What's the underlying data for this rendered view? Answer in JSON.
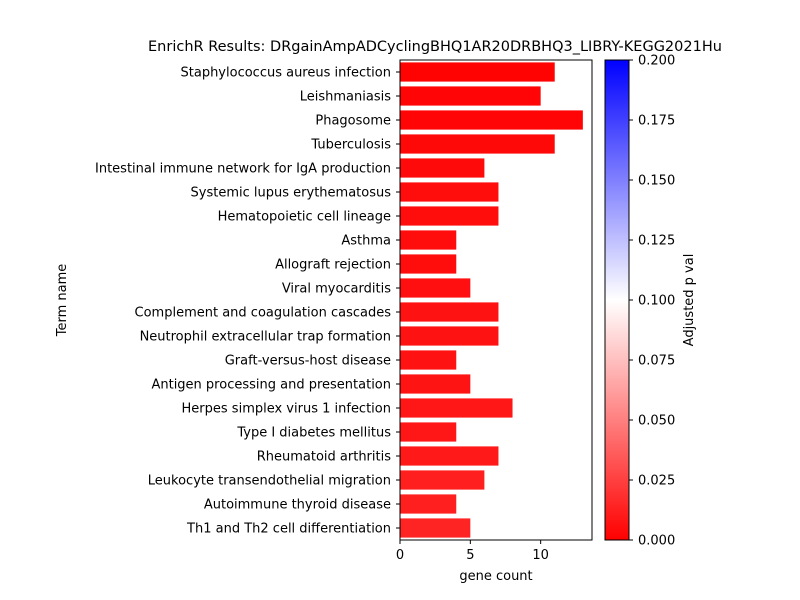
{
  "chart_data": {
    "type": "bar",
    "orientation": "horizontal",
    "title": "EnrichR Results: DRgainAmpADCyclingBHQ1AR20DRBHQ3_LIBRY-KEGG2021Hu",
    "xlabel": "gene count",
    "ylabel": "Term name",
    "xlim": [
      0,
      13.65
    ],
    "x_ticks": [
      "0",
      "5",
      "10"
    ],
    "x_tick_values": [
      0,
      5,
      10
    ],
    "categories": [
      "Staphylococcus aureus infection",
      "Leishmaniasis",
      "Phagosome",
      "Tuberculosis",
      "Intestinal immune network for IgA production",
      "Systemic lupus erythematosus",
      "Hematopoietic cell lineage",
      "Asthma",
      "Allograft rejection",
      "Viral myocarditis",
      "Complement and coagulation cascades",
      "Neutrophil extracellular trap formation",
      "Graft-versus-host disease",
      "Antigen processing and presentation",
      "Herpes simplex virus 1 infection",
      "Type I diabetes mellitus",
      "Rheumatoid arthritis",
      "Leukocyte transendothelial migration",
      "Autoimmune thyroid disease",
      "Th1 and Th2 cell differentiation"
    ],
    "values": [
      11,
      10,
      13,
      11,
      6,
      7,
      7,
      4,
      4,
      5,
      7,
      7,
      4,
      5,
      8,
      4,
      7,
      6,
      4,
      5
    ],
    "adjusted_p": [
      0.001,
      0.002,
      0.002,
      0.003,
      0.004,
      0.005,
      0.005,
      0.005,
      0.005,
      0.006,
      0.007,
      0.007,
      0.007,
      0.008,
      0.009,
      0.009,
      0.01,
      0.012,
      0.012,
      0.014
    ],
    "colorbar": {
      "label": "Adjusted p val",
      "range": [
        0,
        0.2
      ],
      "ticks": [
        "0.000",
        "0.025",
        "0.050",
        "0.075",
        "0.100",
        "0.125",
        "0.150",
        "0.175",
        "0.200"
      ],
      "tick_values": [
        0,
        0.025,
        0.05,
        0.075,
        0.1,
        0.125,
        0.15,
        0.175,
        0.2
      ],
      "colors": [
        "#ff0000",
        "#ffffff",
        "#0000ff"
      ]
    },
    "grid": false,
    "legend": "colorbar-right"
  }
}
